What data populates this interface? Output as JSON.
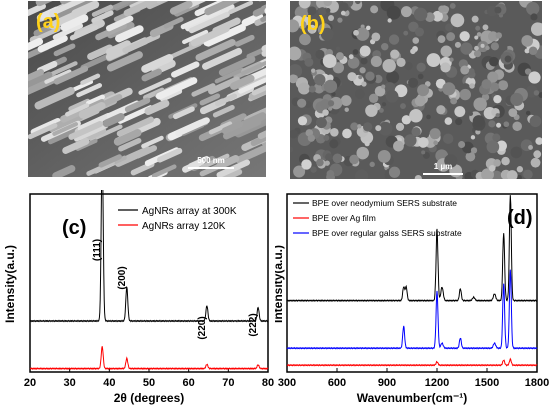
{
  "panels": {
    "a": {
      "label": "(a)",
      "scale_bar": "500 nm"
    },
    "b": {
      "label": "(b)",
      "scale_bar": "1 µm"
    }
  },
  "chart_data": [
    {
      "type": "line",
      "panel_label": "(c)",
      "title": "",
      "xlabel": "2θ (degrees)",
      "ylabel": "Intensity(a.u.)",
      "xlim": [
        20,
        80
      ],
      "x_ticks": [
        20,
        30,
        40,
        50,
        60,
        70,
        80
      ],
      "grid": false,
      "legend_position": "top-right",
      "peak_labels": [
        {
          "text": "(111)",
          "x": 38.2
        },
        {
          "text": "(200)",
          "x": 44.4
        },
        {
          "text": "(220)",
          "x": 64.6
        },
        {
          "text": "(222)",
          "x": 77.5
        }
      ],
      "series": [
        {
          "name": "AgNRs array at 300K",
          "color": "#000000",
          "baseline": 0.3,
          "peaks": [
            [
              38.2,
              1.0,
              0.35
            ],
            [
              44.4,
              0.2,
              0.35
            ],
            [
              64.6,
              0.09,
              0.35
            ],
            [
              77.5,
              0.08,
              0.35
            ]
          ]
        },
        {
          "name": "AgNRs array 120K",
          "color": "#ff0000",
          "baseline": 0.02,
          "peaks": [
            [
              38.2,
              0.13,
              0.35
            ],
            [
              44.4,
              0.06,
              0.35
            ],
            [
              64.6,
              0.025,
              0.35
            ],
            [
              77.5,
              0.022,
              0.35
            ]
          ]
        }
      ]
    },
    {
      "type": "line",
      "panel_label": "(d)",
      "title": "",
      "xlabel": "Wavenumber(cm⁻¹)",
      "ylabel": "Intensity(a.u.)",
      "xlim": [
        300,
        1800
      ],
      "x_ticks": [
        300,
        600,
        900,
        1200,
        1500,
        1800
      ],
      "grid": false,
      "legend_position": "top-left",
      "series": [
        {
          "name": "BPE over neodymium SERS substrate",
          "color": "#000000",
          "baseline": 0.42,
          "peaks": [
            [
              1000,
              0.08,
              8
            ],
            [
              1015,
              0.08,
              8
            ],
            [
              1200,
              0.42,
              8
            ],
            [
              1230,
              0.08,
              10
            ],
            [
              1340,
              0.07,
              8
            ],
            [
              1420,
              0.02,
              10
            ],
            [
              1545,
              0.04,
              10
            ],
            [
              1600,
              0.4,
              8
            ],
            [
              1640,
              0.62,
              8
            ]
          ]
        },
        {
          "name": "BPE over Ag film",
          "color": "#ff0000",
          "baseline": 0.04,
          "peaks": [
            [
              1200,
              0.02,
              8
            ],
            [
              1600,
              0.03,
              8
            ],
            [
              1640,
              0.035,
              8
            ]
          ]
        },
        {
          "name": "BPE over regular galss SERS substrate",
          "color": "#0000ff",
          "baseline": 0.14,
          "peaks": [
            [
              1000,
              0.13,
              8
            ],
            [
              1200,
              0.34,
              8
            ],
            [
              1230,
              0.03,
              10
            ],
            [
              1340,
              0.06,
              8
            ],
            [
              1545,
              0.03,
              10
            ],
            [
              1600,
              0.38,
              8
            ],
            [
              1640,
              0.46,
              8
            ]
          ]
        }
      ]
    }
  ]
}
